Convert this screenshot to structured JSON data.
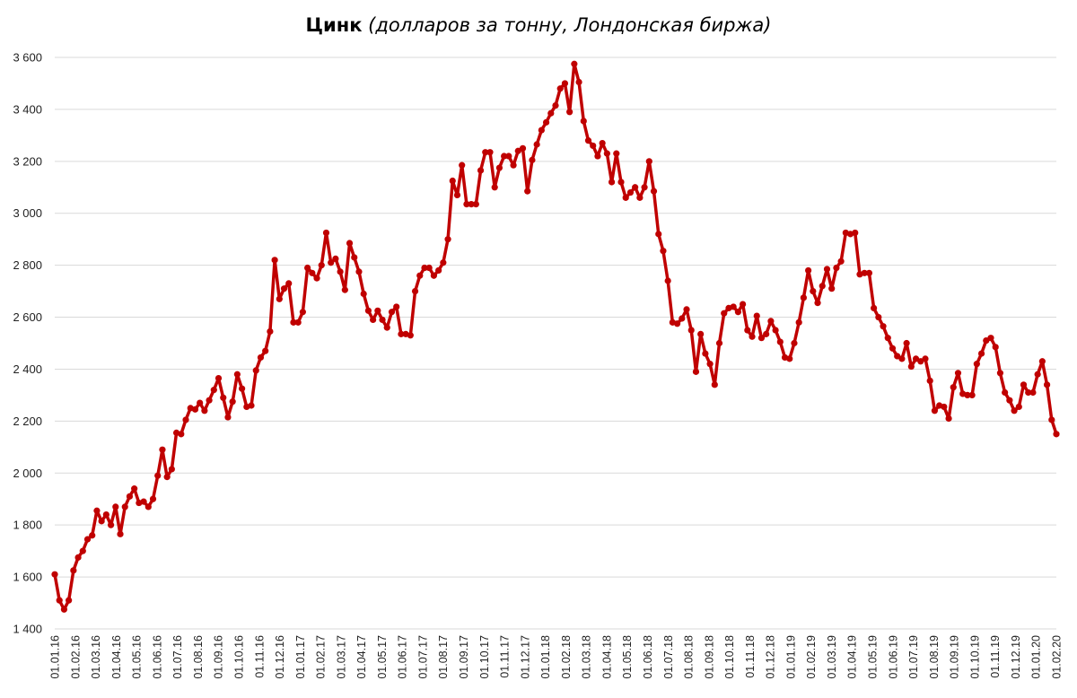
{
  "title": {
    "main": "Цинк",
    "subtitle": "(долларов за тонну, Лондонская биржа)"
  },
  "colors": {
    "series": "#c00000",
    "grid": "#d9d9d9"
  },
  "chart_data": {
    "type": "line",
    "title": "Цинк (долларов за тонну, Лондонская биржа)",
    "xlabel": "",
    "ylabel": "",
    "ylim": [
      1400,
      3600
    ],
    "y_ticks": [
      "1 400",
      "1 600",
      "1 800",
      "2 000",
      "2 200",
      "2 400",
      "2 600",
      "2 800",
      "3 000",
      "3 200",
      "3 400",
      "3 600"
    ],
    "x_ticks": [
      "01.01.16",
      "01.02.16",
      "01.03.16",
      "01.04.16",
      "01.05.16",
      "01.06.16",
      "01.07.16",
      "01.08.16",
      "01.09.16",
      "01.10.16",
      "01.11.16",
      "01.12.16",
      "01.01.17",
      "01.02.17",
      "01.03.17",
      "01.04.17",
      "01.05.17",
      "01.06.17",
      "01.07.17",
      "01.08.17",
      "01.09.17",
      "01.10.17",
      "01.11.17",
      "01.12.17",
      "01.01.18",
      "01.02.18",
      "01.03.18",
      "01.04.18",
      "01.05.18",
      "01.06.18",
      "01.07.18",
      "01.08.18",
      "01.09.18",
      "01.10.18",
      "01.11.18",
      "01.12.18",
      "01.01.19",
      "01.02.19",
      "01.03.19",
      "01.04.19",
      "01.05.19",
      "01.06.19",
      "01.07.19",
      "01.08.19",
      "01.09.19",
      "01.10.19",
      "01.11.19",
      "01.12.19",
      "01.01.20",
      "01.02.20"
    ],
    "grid": true,
    "legend": "none",
    "x_range": [
      "01.01.16",
      "01.02.20"
    ],
    "series": [
      {
        "values": [
          1610,
          1510,
          1475,
          1510,
          1625,
          1675,
          1700,
          1745,
          1760,
          1855,
          1815,
          1840,
          1800,
          1870,
          1765,
          1870,
          1910,
          1940,
          1885,
          1890,
          1870,
          1900,
          1990,
          2090,
          1985,
          2015,
          2155,
          2150,
          2205,
          2250,
          2245,
          2270,
          2240,
          2280,
          2320,
          2365,
          2290,
          2215,
          2275,
          2380,
          2325,
          2255,
          2260,
          2395,
          2445,
          2470,
          2545,
          2820,
          2670,
          2710,
          2730,
          2580,
          2580,
          2620,
          2790,
          2770,
          2750,
          2800,
          2925,
          2810,
          2825,
          2775,
          2705,
          2885,
          2830,
          2775,
          2690,
          2625,
          2590,
          2625,
          2590,
          2560,
          2620,
          2640,
          2535,
          2535,
          2530,
          2700,
          2760,
          2790,
          2790,
          2760,
          2780,
          2810,
          2900,
          3125,
          3070,
          3185,
          3035,
          3035,
          3035,
          3165,
          3235,
          3235,
          3100,
          3175,
          3220,
          3220,
          3185,
          3240,
          3250,
          3085,
          3205,
          3265,
          3320,
          3350,
          3385,
          3415,
          3480,
          3500,
          3390,
          3575,
          3505,
          3355,
          3280,
          3260,
          3220,
          3270,
          3230,
          3120,
          3230,
          3120,
          3060,
          3080,
          3100,
          3060,
          3100,
          3200,
          3085,
          2920,
          2855,
          2740,
          2580,
          2575,
          2595,
          2630,
          2550,
          2390,
          2535,
          2460,
          2420,
          2340,
          2500,
          2615,
          2635,
          2640,
          2620,
          2650,
          2550,
          2525,
          2605,
          2520,
          2535,
          2585,
          2550,
          2505,
          2445,
          2440,
          2500,
          2580,
          2675,
          2780,
          2700,
          2655,
          2720,
          2785,
          2710,
          2790,
          2815,
          2925,
          2920,
          2925,
          2765,
          2770,
          2770,
          2635,
          2600,
          2565,
          2520,
          2480,
          2450,
          2440,
          2500,
          2410,
          2440,
          2430,
          2440,
          2355,
          2240,
          2260,
          2255,
          2210,
          2330,
          2385,
          2305,
          2300,
          2300,
          2420,
          2460,
          2510,
          2520,
          2485,
          2385,
          2310,
          2280,
          2240,
          2255,
          2340,
          2310,
          2310,
          2380,
          2430,
          2340,
          2205,
          2150
        ]
      }
    ]
  }
}
